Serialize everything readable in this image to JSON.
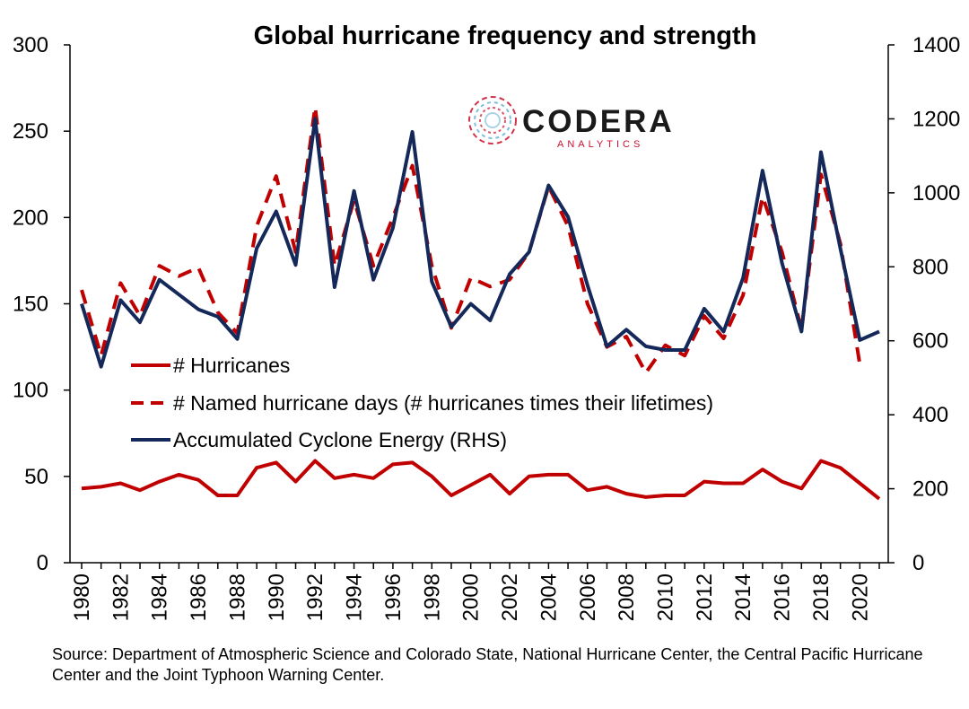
{
  "chart_data": {
    "type": "line",
    "title": "Global hurricane frequency and strength",
    "x": [
      1980,
      1981,
      1982,
      1983,
      1984,
      1985,
      1986,
      1987,
      1988,
      1989,
      1990,
      1991,
      1992,
      1993,
      1994,
      1995,
      1996,
      1997,
      1998,
      1999,
      2000,
      2001,
      2002,
      2003,
      2004,
      2005,
      2006,
      2007,
      2008,
      2009,
      2010,
      2011,
      2012,
      2013,
      2014,
      2015,
      2016,
      2017,
      2018,
      2019,
      2020,
      2021
    ],
    "x_tick_labels": [
      "1980",
      "1982",
      "1984",
      "1986",
      "1988",
      "1990",
      "1992",
      "1994",
      "1996",
      "1998",
      "2000",
      "2002",
      "2004",
      "2006",
      "2008",
      "2010",
      "2012",
      "2014",
      "2016",
      "2018",
      "2020"
    ],
    "y_left": {
      "ylim": [
        0,
        300
      ],
      "ticks": [
        0,
        50,
        100,
        150,
        200,
        250,
        300
      ],
      "tick_labels": [
        "0",
        "50",
        "100",
        "150",
        "200",
        "250",
        "300"
      ]
    },
    "y_right": {
      "ylim": [
        0,
        1400
      ],
      "ticks": [
        0,
        200,
        400,
        600,
        800,
        1000,
        1200,
        1400
      ],
      "tick_labels": [
        "0",
        "200",
        "400",
        "600",
        "800",
        "1000",
        "1200",
        "1400"
      ]
    },
    "legend_position": "middle-left",
    "series": [
      {
        "name": "# Hurricanes",
        "axis": "left",
        "style": "solid",
        "color": "#c00000",
        "values": [
          43,
          44,
          46,
          42,
          47,
          51,
          48,
          39,
          39,
          55,
          58,
          47,
          59,
          49,
          51,
          49,
          57,
          58,
          50,
          39,
          45,
          51,
          40,
          50,
          51,
          51,
          42,
          44,
          40,
          38,
          39,
          39,
          47,
          46,
          46,
          54,
          47,
          43,
          59,
          55,
          46,
          37
        ],
        "x": [
          1980,
          1981,
          1982,
          1983,
          1984,
          1985,
          1986,
          1987,
          1988,
          1989,
          1990,
          1991,
          1992,
          1993,
          1994,
          1995,
          1996,
          1997,
          1998,
          1999,
          2000,
          2001,
          2002,
          2003,
          2004,
          2005,
          2006,
          2007,
          2008,
          2009,
          2010,
          2011,
          2012,
          2013,
          2014,
          2015,
          2016,
          2017,
          2018,
          2019,
          2020,
          2021
        ]
      },
      {
        "name": "# Named hurricane days (# hurricanes times their lifetimes)",
        "axis": "left",
        "style": "dashed",
        "color": "#c00000",
        "values": [
          158,
          120,
          162,
          143,
          172,
          166,
          171,
          145,
          133,
          195,
          224,
          180,
          264,
          172,
          210,
          172,
          200,
          230,
          172,
          136,
          165,
          160,
          164,
          180,
          218,
          195,
          150,
          125,
          131,
          110,
          126,
          120,
          143,
          130,
          155,
          212,
          180,
          135,
          225,
          185,
          115
        ],
        "x": [
          1980,
          1981,
          1982,
          1983,
          1984,
          1985,
          1986,
          1987,
          1988,
          1989,
          1990,
          1991,
          1992,
          1993,
          1994,
          1995,
          1996,
          1997,
          1998,
          1999,
          2000,
          2001,
          2002,
          2003,
          2004,
          2005,
          2006,
          2007,
          2008,
          2009,
          2010,
          2011,
          2012,
          2013,
          2014,
          2015,
          2016,
          2017,
          2018,
          2019,
          2020
        ]
      },
      {
        "name": "Accumulated Cyclone Energy (RHS)",
        "axis": "right",
        "style": "solid",
        "color": "#14285a",
        "values": [
          700,
          530,
          710,
          650,
          765,
          725,
          685,
          665,
          605,
          850,
          950,
          805,
          1200,
          745,
          1005,
          765,
          905,
          1165,
          760,
          638,
          700,
          655,
          780,
          840,
          1020,
          935,
          750,
          585,
          630,
          585,
          575,
          575,
          687,
          625,
          770,
          1060,
          810,
          625,
          1110,
          850,
          602,
          625
        ],
        "x": [
          1980,
          1981,
          1982,
          1983,
          1984,
          1985,
          1986,
          1987,
          1988,
          1989,
          1990,
          1991,
          1992,
          1993,
          1994,
          1995,
          1996,
          1997,
          1998,
          1999,
          2000,
          2001,
          2002,
          2003,
          2004,
          2005,
          2006,
          2007,
          2008,
          2009,
          2010,
          2011,
          2012,
          2013,
          2014,
          2015,
          2016,
          2017,
          2018,
          2019,
          2020,
          2021
        ]
      }
    ]
  },
  "logo": {
    "main": "CODERA",
    "sub": "ANALYTICS"
  },
  "source": "Source:  Department of Atmospheric Science and Colorado State, National Hurricane Center, the Central Pacific Hurricane Center and the Joint Typhoon Warning Center."
}
